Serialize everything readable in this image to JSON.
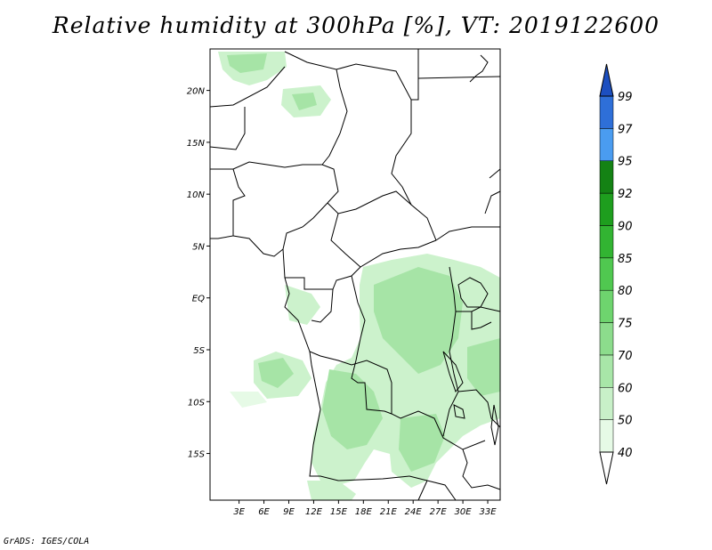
{
  "title": "Relative humidity at 300hPa [%], VT: 2019122600",
  "footer": "GrADS: IGES/COLA",
  "map": {
    "lon_range": [
      -0.5,
      34.5
    ],
    "lat_range": [
      -19.5,
      24
    ],
    "lat_ticks": [
      {
        "value": 20,
        "label": "20N"
      },
      {
        "value": 15,
        "label": "15N"
      },
      {
        "value": 10,
        "label": "10N"
      },
      {
        "value": 5,
        "label": "5N"
      },
      {
        "value": 0,
        "label": "EQ"
      },
      {
        "value": -5,
        "label": "5S"
      },
      {
        "value": -10,
        "label": "10S"
      },
      {
        "value": -15,
        "label": "15S"
      }
    ],
    "lon_ticks": [
      {
        "value": 3,
        "label": "3E"
      },
      {
        "value": 6,
        "label": "6E"
      },
      {
        "value": 9,
        "label": "9E"
      },
      {
        "value": 12,
        "label": "12E"
      },
      {
        "value": 15,
        "label": "15E"
      },
      {
        "value": 18,
        "label": "18E"
      },
      {
        "value": 21,
        "label": "21E"
      },
      {
        "value": 24,
        "label": "24E"
      },
      {
        "value": 27,
        "label": "27E"
      },
      {
        "value": 30,
        "label": "30E"
      },
      {
        "value": 33,
        "label": "33E"
      }
    ]
  },
  "colorbar": {
    "levels": [
      "40",
      "50",
      "60",
      "70",
      "75",
      "80",
      "85",
      "90",
      "92",
      "95",
      "97",
      "99"
    ],
    "colors": [
      "#ffffff",
      "#e6fae6",
      "#c8f0c8",
      "#a8e6a8",
      "#8cdc8c",
      "#6ed46e",
      "#50c850",
      "#32b432",
      "#1e9e1e",
      "#148214",
      "#4a9cf0",
      "#2e6fd8",
      "#1c4fc0"
    ]
  },
  "colors": {
    "light_green": "#ccf2cc",
    "mid_green": "#a6e4a6",
    "border": "#000000"
  }
}
